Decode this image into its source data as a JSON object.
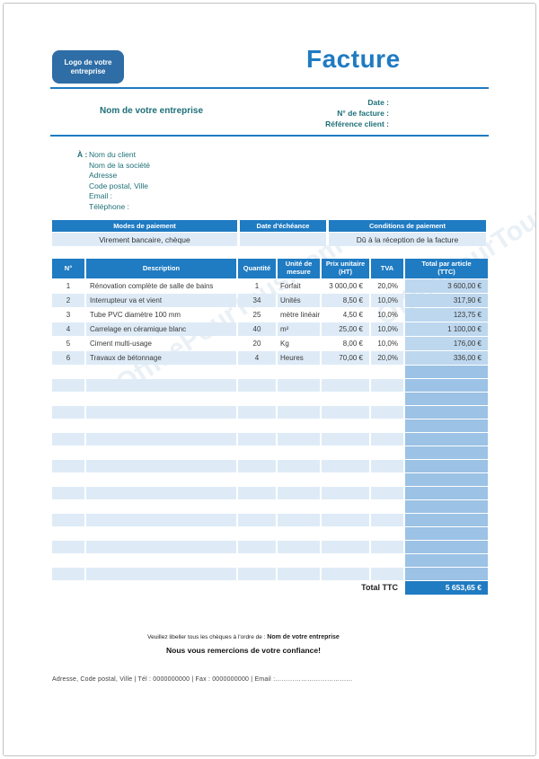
{
  "page": {
    "logo_label": "Logo de votre entreprise",
    "title": "Facture",
    "watermark": "OfficePourTous.com"
  },
  "company": {
    "name": "Nom de votre entreprise"
  },
  "invoice_meta": {
    "date_label": "Date :",
    "number_label": "N° de facture :",
    "reference_label": "Référence client :"
  },
  "client": {
    "prefix": "À :",
    "lines": [
      "Nom du client",
      "Nom de la société",
      "Adresse",
      "Code postal, Ville",
      "Email :",
      "Téléphone :"
    ]
  },
  "payment": {
    "headers": [
      "Modes de paiement",
      "Date d'échéance",
      "Conditions de paiement"
    ],
    "values": [
      "Virement bancaire, chèque",
      "",
      "Dû à la réception de la facture"
    ]
  },
  "items_table": {
    "columns": [
      "N°",
      "Description",
      "Quantité",
      "Unité de\nmesure",
      "Prix unitaire\n(HT)",
      "TVA",
      "Total par article\n(TTC)"
    ],
    "rows": [
      [
        "1",
        "Rénovation complète de salle de bains",
        "1",
        "Forfait",
        "3 000,00 €",
        "20,0%",
        "3 600,00 €"
      ],
      [
        "2",
        "Interrupteur va et vient",
        "34",
        "Unités",
        "8,50 €",
        "10,0%",
        "317,90 €"
      ],
      [
        "3",
        "Tube PVC diamètre 100 mm",
        "25",
        "mètre linéaire",
        "4,50 €",
        "10,0%",
        "123,75 €"
      ],
      [
        "4",
        "Carrelage en céramique blanc",
        "40",
        "m²",
        "25,00 €",
        "10,0%",
        "1 100,00 €"
      ],
      [
        "5",
        "Ciment multi-usage",
        "20",
        "Kg",
        "8,00 €",
        "10,0%",
        "176,00 €"
      ],
      [
        "6",
        "Travaux de bétonnage",
        "4",
        "Heures",
        "70,00 €",
        "20,0%",
        "336,00 €"
      ]
    ],
    "empty_row_count": 16,
    "total_label": "Total TTC",
    "total_value": "5 653,65 €"
  },
  "footer": {
    "cheque_note_prefix": "Veuillez libeller tous les chèques à l'ordre de : ",
    "cheque_note_company": "Nom de votre entreprise",
    "thanks": "Nous vous remercions de votre confiance!",
    "contact_line": "Adresse, Code postal, Ville |  Tél : 0000000000  |  Fax : 0000000000 |  Email :………………………………"
  },
  "colors": {
    "primary_blue": "#1F7BC2",
    "logo_blue": "#2E6DA6",
    "row_light_blue": "#DEEBF7",
    "total_column_blue": "#BDD7EE",
    "empty_total_column_blue": "#9CC2E5",
    "teal_text": "#1E6F78"
  }
}
